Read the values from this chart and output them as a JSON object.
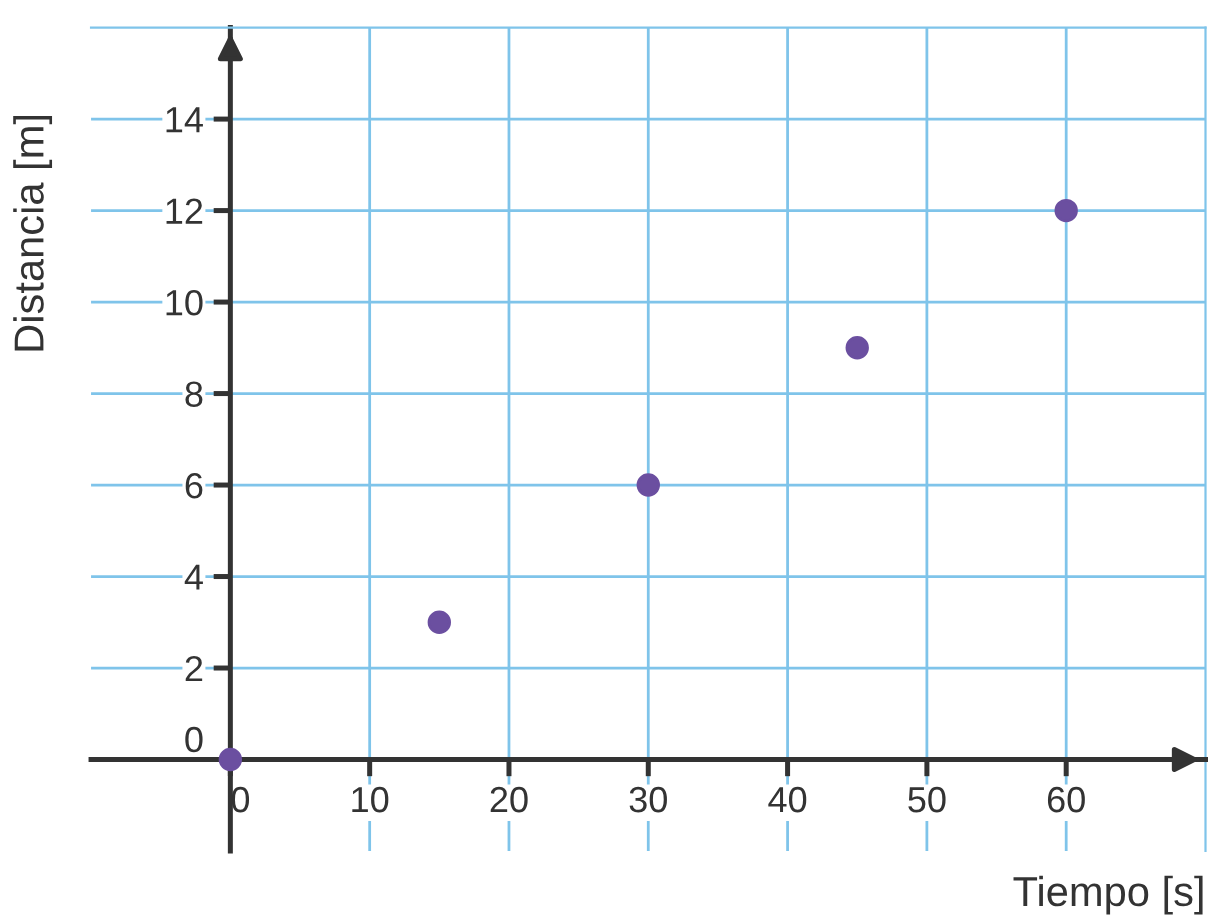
{
  "chart_data": {
    "type": "scatter",
    "xlabel": "Tiempo [s]",
    "ylabel": "Distancia [m]",
    "x": [
      0,
      15,
      30,
      45,
      60
    ],
    "series": [
      {
        "color": "#6b4fa0",
        "values": [
          0,
          3,
          6,
          9,
          12
        ]
      }
    ],
    "xlim": [
      -10,
      70
    ],
    "ylim": [
      -2,
      16
    ],
    "xticks": [
      0,
      10,
      20,
      30,
      40,
      50,
      60
    ],
    "yticks": [
      0,
      2,
      4,
      6,
      8,
      10,
      12,
      14
    ],
    "grid": true,
    "marker": "circle"
  }
}
